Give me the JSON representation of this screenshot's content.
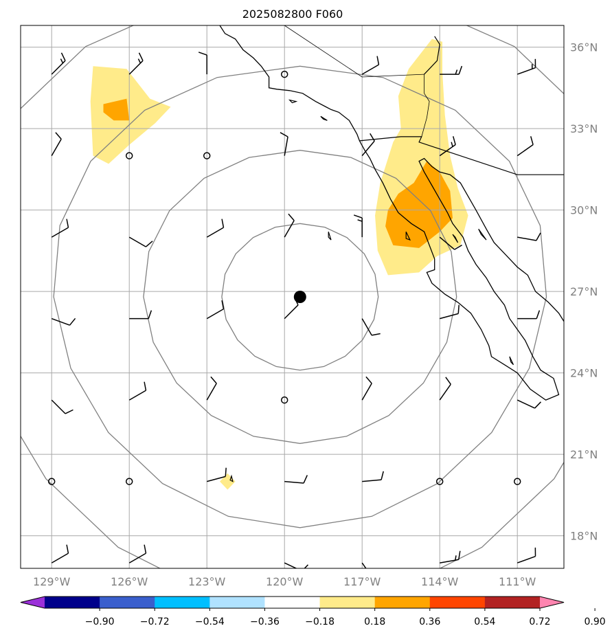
{
  "title": "2025082800 F060",
  "map": {
    "lon_min": -130.2,
    "lon_max": -109.2,
    "lat_min": 16.8,
    "lat_max": 36.8,
    "center_marker": {
      "lon": -119.4,
      "lat": 26.8
    }
  },
  "axes": {
    "lon_ticks": [
      {
        "lon": -129,
        "label": "129°W"
      },
      {
        "lon": -126,
        "label": "126°W"
      },
      {
        "lon": -123,
        "label": "123°W"
      },
      {
        "lon": -120,
        "label": "120°W"
      },
      {
        "lon": -117,
        "label": "117°W"
      },
      {
        "lon": -114,
        "label": "114°W"
      },
      {
        "lon": -111,
        "label": "111°W"
      }
    ],
    "lat_ticks": [
      {
        "lat": 36,
        "label": "36°N"
      },
      {
        "lat": 33,
        "label": "33°N"
      },
      {
        "lat": 30,
        "label": "30°N"
      },
      {
        "lat": 27,
        "label": "27°N"
      },
      {
        "lat": 24,
        "label": "24°N"
      },
      {
        "lat": 21,
        "label": "21°N"
      },
      {
        "lat": 18,
        "label": "18°N"
      }
    ]
  },
  "range_rings_deg": [
    2.7,
    5.4,
    8.5,
    11.4
  ],
  "colorbar": {
    "levels": [
      -0.9,
      -0.72,
      -0.54,
      -0.36,
      -0.18,
      0.18,
      0.36,
      0.54,
      0.72,
      0.9
    ],
    "labels": [
      "−0.90",
      "−0.72",
      "−0.54",
      "−0.36",
      "−0.18",
      "0.18",
      "0.36",
      "0.54",
      "0.72",
      "0.90"
    ],
    "colors": [
      "#9b30d9",
      "#00008b",
      "#3a5fcd",
      "#00bfff",
      "#b0e2ff",
      "#ffffff",
      "#ffeb8a",
      "#ffa500",
      "#ff4500",
      "#b22222",
      "#ff85b0"
    ]
  },
  "shading": [
    {
      "level": 0.18,
      "color": "#ffeb8a",
      "poly": [
        [
          -127.4,
          35.3
        ],
        [
          -126.1,
          35.2
        ],
        [
          -125.2,
          34.1
        ],
        [
          -124.4,
          33.8
        ],
        [
          -125.0,
          33.2
        ],
        [
          -126.0,
          32.4
        ],
        [
          -126.8,
          31.7
        ],
        [
          -127.4,
          32.0
        ],
        [
          -127.5,
          34.0
        ]
      ]
    },
    {
      "level": 0.36,
      "color": "#ffa500",
      "poly": [
        [
          -127.0,
          33.9
        ],
        [
          -126.1,
          34.1
        ],
        [
          -126.0,
          33.3
        ],
        [
          -126.6,
          33.3
        ],
        [
          -127.0,
          33.6
        ]
      ]
    },
    {
      "level": 0.18,
      "color": "#ffeb8a",
      "poly": [
        [
          -115.2,
          35.2
        ],
        [
          -114.3,
          36.3
        ],
        [
          -113.9,
          36.2
        ],
        [
          -113.9,
          35.1
        ],
        [
          -113.8,
          33.5
        ],
        [
          -113.6,
          32.0
        ],
        [
          -113.3,
          30.8
        ],
        [
          -112.9,
          29.8
        ],
        [
          -113.2,
          28.7
        ],
        [
          -114.1,
          28.3
        ],
        [
          -114.8,
          27.7
        ],
        [
          -116.0,
          27.6
        ],
        [
          -116.4,
          28.5
        ],
        [
          -116.5,
          29.8
        ],
        [
          -116.3,
          31.0
        ],
        [
          -115.8,
          32.5
        ],
        [
          -115.5,
          33.0
        ],
        [
          -115.6,
          34.2
        ]
      ]
    },
    {
      "level": 0.36,
      "color": "#ffa500",
      "poly": [
        [
          -115.0,
          31.0
        ],
        [
          -114.5,
          31.8
        ],
        [
          -114.0,
          31.4
        ],
        [
          -113.6,
          30.7
        ],
        [
          -113.5,
          29.7
        ],
        [
          -114.0,
          29.2
        ],
        [
          -114.8,
          28.6
        ],
        [
          -115.8,
          28.7
        ],
        [
          -116.1,
          29.4
        ],
        [
          -116.0,
          30.0
        ],
        [
          -115.6,
          30.6
        ]
      ]
    },
    {
      "level": 0.18,
      "color": "#ffeb8a",
      "poly": [
        [
          -122.2,
          20.3
        ],
        [
          -121.9,
          20.0
        ],
        [
          -122.2,
          19.7
        ],
        [
          -122.5,
          20.0
        ]
      ]
    }
  ],
  "wind_barbs": [
    {
      "lon": -129.0,
      "lat": 35.0,
      "dir": 225,
      "spd": 15
    },
    {
      "lon": -126.0,
      "lat": 35.0,
      "dir": 225,
      "spd": 15
    },
    {
      "lon": -123.0,
      "lat": 35.0,
      "dir": 180,
      "spd": 10
    },
    {
      "lon": -117.0,
      "lat": 35.0,
      "dir": 240,
      "spd": 10
    },
    {
      "lon": -114.0,
      "lat": 35.0,
      "dir": 270,
      "spd": 15
    },
    {
      "lon": -111.0,
      "lat": 35.0,
      "dir": 250,
      "spd": 15
    },
    {
      "lon": -129.0,
      "lat": 32.0,
      "dir": 210,
      "spd": 10
    },
    {
      "lon": -120.0,
      "lat": 32.0,
      "dir": 190,
      "spd": 10
    },
    {
      "lon": -117.0,
      "lat": 32.0,
      "dir": 220,
      "spd": 10
    },
    {
      "lon": -114.0,
      "lat": 32.0,
      "dir": 235,
      "spd": 15
    },
    {
      "lon": -111.0,
      "lat": 32.0,
      "dir": 235,
      "spd": 10
    },
    {
      "lon": -129.0,
      "lat": 29.0,
      "dir": 240,
      "spd": 10
    },
    {
      "lon": -126.0,
      "lat": 29.0,
      "dir": 300,
      "spd": 10
    },
    {
      "lon": -123.0,
      "lat": 29.0,
      "dir": 240,
      "spd": 10
    },
    {
      "lon": -120.0,
      "lat": 29.0,
      "dir": 210,
      "spd": 10
    },
    {
      "lon": -117.0,
      "lat": 29.0,
      "dir": 180,
      "spd": 15
    },
    {
      "lon": -114.0,
      "lat": 29.0,
      "dir": 310,
      "spd": 10
    },
    {
      "lon": -111.0,
      "lat": 29.0,
      "dir": 280,
      "spd": 10
    },
    {
      "lon": -129.0,
      "lat": 26.0,
      "dir": 290,
      "spd": 10
    },
    {
      "lon": -126.0,
      "lat": 26.0,
      "dir": 270,
      "spd": 10
    },
    {
      "lon": -123.0,
      "lat": 26.0,
      "dir": 240,
      "spd": 10
    },
    {
      "lon": -120.0,
      "lat": 26.0,
      "dir": 225,
      "spd": 10
    },
    {
      "lon": -117.0,
      "lat": 26.0,
      "dir": 330,
      "spd": 10
    },
    {
      "lon": -114.0,
      "lat": 26.0,
      "dir": 255,
      "spd": 10
    },
    {
      "lon": -111.0,
      "lat": 26.0,
      "dir": 270,
      "spd": 10
    },
    {
      "lon": -129.0,
      "lat": 23.0,
      "dir": 315,
      "spd": 10
    },
    {
      "lon": -126.0,
      "lat": 23.0,
      "dir": 240,
      "spd": 10
    },
    {
      "lon": -123.0,
      "lat": 23.0,
      "dir": 210,
      "spd": 10
    },
    {
      "lon": -117.0,
      "lat": 23.0,
      "dir": 210,
      "spd": 10
    },
    {
      "lon": -114.0,
      "lat": 23.0,
      "dir": 215,
      "spd": 10
    },
    {
      "lon": -111.0,
      "lat": 23.0,
      "dir": 295,
      "spd": 10
    },
    {
      "lon": -123.0,
      "lat": 20.0,
      "dir": 255,
      "spd": 10
    },
    {
      "lon": -120.0,
      "lat": 20.0,
      "dir": 275,
      "spd": 10
    },
    {
      "lon": -117.0,
      "lat": 20.0,
      "dir": 265,
      "spd": 10
    },
    {
      "lon": -129.0,
      "lat": 17.0,
      "dir": 240,
      "spd": 10
    },
    {
      "lon": -126.0,
      "lat": 17.0,
      "dir": 240,
      "spd": 10
    },
    {
      "lon": -120.0,
      "lat": 17.0,
      "dir": 295,
      "spd": 10
    },
    {
      "lon": -117.0,
      "lat": 17.0,
      "dir": 325,
      "spd": 10
    },
    {
      "lon": -114.0,
      "lat": 17.0,
      "dir": 260,
      "spd": 15
    },
    {
      "lon": -111.0,
      "lat": 17.0,
      "dir": 250,
      "spd": 10
    }
  ],
  "calm_points": [
    {
      "lon": -120.0,
      "lat": 35.0
    },
    {
      "lon": -126.0,
      "lat": 32.0
    },
    {
      "lon": -123.0,
      "lat": 32.0
    },
    {
      "lon": -120.0,
      "lat": 23.0
    },
    {
      "lon": -129.0,
      "lat": 20.0
    },
    {
      "lon": -126.0,
      "lat": 20.0
    },
    {
      "lon": -114.0,
      "lat": 20.0
    },
    {
      "lon": -111.0,
      "lat": 20.0
    }
  ],
  "coastline": [
    [
      -122.5,
      36.8
    ],
    [
      -122.3,
      36.5
    ],
    [
      -121.9,
      36.3
    ],
    [
      -121.6,
      35.9
    ],
    [
      -121.2,
      35.6
    ],
    [
      -120.9,
      35.3
    ],
    [
      -120.6,
      34.9
    ],
    [
      -120.6,
      34.5
    ],
    [
      -120.3,
      34.45
    ],
    [
      -119.8,
      34.4
    ],
    [
      -119.3,
      34.3
    ],
    [
      -118.8,
      34.0
    ],
    [
      -118.4,
      33.8
    ],
    [
      -118.2,
      33.7
    ],
    [
      -117.9,
      33.6
    ],
    [
      -117.5,
      33.3
    ],
    [
      -117.2,
      32.8
    ],
    [
      -117.1,
      32.55
    ],
    [
      -116.9,
      32.2
    ],
    [
      -116.7,
      31.9
    ],
    [
      -116.5,
      31.5
    ],
    [
      -116.2,
      31.0
    ],
    [
      -115.9,
      30.4
    ],
    [
      -115.6,
      29.9
    ],
    [
      -115.1,
      29.5
    ],
    [
      -114.6,
      29.2
    ],
    [
      -114.4,
      28.7
    ],
    [
      -114.2,
      28.2
    ],
    [
      -114.2,
      27.8
    ],
    [
      -114.5,
      27.7
    ],
    [
      -114.3,
      27.3
    ],
    [
      -113.8,
      26.9
    ],
    [
      -113.3,
      26.6
    ],
    [
      -112.8,
      26.2
    ],
    [
      -112.4,
      25.6
    ],
    [
      -112.1,
      25.0
    ],
    [
      -112.0,
      24.6
    ],
    [
      -111.5,
      24.3
    ],
    [
      -111.0,
      24.0
    ],
    [
      -110.5,
      23.4
    ],
    [
      -109.9,
      23.0
    ],
    [
      -109.4,
      23.2
    ],
    [
      -109.6,
      23.8
    ],
    [
      -110.1,
      24.1
    ],
    [
      -110.4,
      24.6
    ],
    [
      -110.7,
      25.2
    ],
    [
      -111.0,
      25.6
    ],
    [
      -111.3,
      26.0
    ],
    [
      -111.5,
      26.5
    ],
    [
      -111.9,
      27.0
    ],
    [
      -112.2,
      27.5
    ],
    [
      -112.6,
      28.0
    ],
    [
      -112.9,
      28.5
    ],
    [
      -113.1,
      29.0
    ],
    [
      -113.5,
      29.5
    ],
    [
      -113.7,
      29.9
    ],
    [
      -114.0,
      30.4
    ],
    [
      -114.3,
      30.9
    ],
    [
      -114.6,
      31.4
    ],
    [
      -114.8,
      31.8
    ],
    [
      -114.6,
      31.9
    ],
    [
      -114.3,
      31.6
    ],
    [
      -114.0,
      31.4
    ],
    [
      -113.6,
      31.3
    ],
    [
      -113.2,
      31.0
    ],
    [
      -112.9,
      30.5
    ],
    [
      -112.6,
      30.0
    ],
    [
      -112.2,
      29.3
    ],
    [
      -111.9,
      28.8
    ],
    [
      -111.5,
      28.4
    ],
    [
      -111.0,
      27.9
    ],
    [
      -110.6,
      27.6
    ],
    [
      -110.3,
      27.0
    ],
    [
      -109.8,
      26.6
    ],
    [
      -109.4,
      26.2
    ],
    [
      -109.2,
      25.9
    ]
  ],
  "border_us_mexico": [
    [
      -117.1,
      32.55
    ],
    [
      -115.5,
      32.7
    ],
    [
      -114.7,
      32.7
    ],
    [
      -114.8,
      32.5
    ],
    [
      -111.0,
      31.3
    ],
    [
      -109.2,
      31.3
    ]
  ],
  "border_ca_az": [
    [
      -114.6,
      35.0
    ],
    [
      -114.6,
      34.3
    ],
    [
      -114.4,
      34.0
    ],
    [
      -114.5,
      33.4
    ],
    [
      -114.7,
      32.7
    ]
  ],
  "border_ca_nv": [
    [
      -120.0,
      36.8
    ],
    [
      -117.0,
      34.9
    ],
    [
      -114.6,
      35.0
    ]
  ],
  "colorado_river": [
    [
      -114.2,
      36.4
    ],
    [
      -114.0,
      36.1
    ],
    [
      -114.1,
      35.5
    ],
    [
      -114.6,
      35.0
    ]
  ],
  "islands": [
    [
      [
        -119.8,
        34.05
      ],
      [
        -119.55,
        34.0
      ],
      [
        -119.7,
        33.95
      ]
    ],
    [
      [
        -118.6,
        33.45
      ],
      [
        -118.35,
        33.3
      ],
      [
        -118.5,
        33.35
      ]
    ],
    [
      [
        -115.3,
        29.2
      ],
      [
        -115.15,
        28.9
      ],
      [
        -115.3,
        28.95
      ]
    ],
    [
      [
        -112.5,
        29.3
      ],
      [
        -112.2,
        28.9
      ],
      [
        -112.4,
        29.1
      ]
    ],
    [
      [
        -113.5,
        29.1
      ],
      [
        -113.3,
        28.8
      ],
      [
        -113.4,
        29.0
      ]
    ],
    [
      [
        -111.3,
        24.6
      ],
      [
        -111.15,
        24.3
      ],
      [
        -111.25,
        24.4
      ]
    ],
    [
      [
        -118.3,
        29.2
      ],
      [
        -118.2,
        28.9
      ],
      [
        -118.3,
        29.0
      ]
    ],
    [
      [
        -122.05,
        20.2
      ],
      [
        -122.0,
        20.0
      ],
      [
        -122.1,
        20.05
      ]
    ]
  ]
}
